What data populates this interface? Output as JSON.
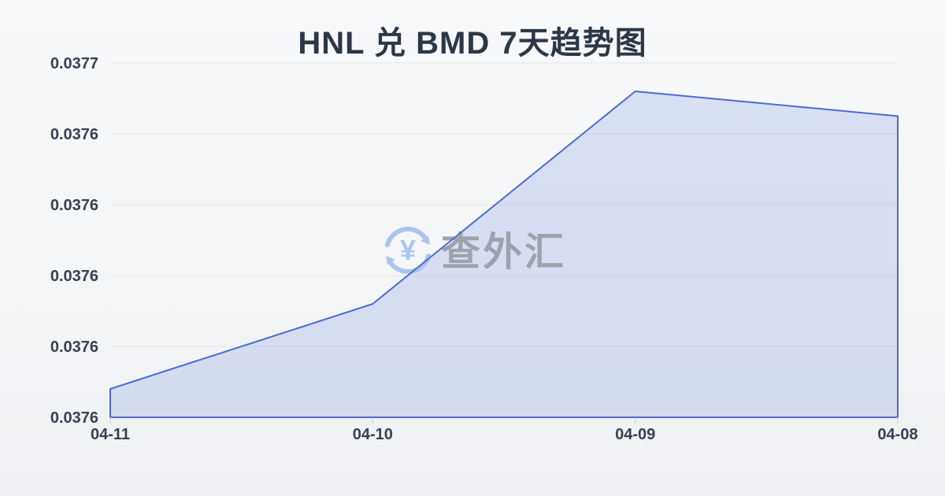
{
  "title": "HNL 兑 BMD 7天趋势图",
  "watermark": {
    "icon": "currency-exchange-icon",
    "icon_symbol": "¥",
    "text": "查外汇"
  },
  "colors": {
    "line": "#4a6cd3",
    "area_fill": "#4a6cd3",
    "gridline": "#e3e6ea",
    "tick": "#c9cdd4",
    "axis_label": "#374151",
    "title": "#2d3748",
    "watermark_text": "#9aa0aa",
    "watermark_icon": "#a9c3ee"
  },
  "chart_data": {
    "type": "area",
    "title": "HNL 兑 BMD 7天趋势图",
    "x": [
      "04-11",
      "04-10",
      "04-09",
      "04-08"
    ],
    "values": [
      0.037608,
      0.037632,
      0.037692,
      0.037685
    ],
    "ylim": [
      0.0376,
      0.0377
    ],
    "y_tick_labels": [
      "0.0377",
      "0.0376",
      "0.0376",
      "0.0376",
      "0.0376",
      "0.0376"
    ],
    "xlabel": "",
    "ylabel": "",
    "grid": true,
    "legend": false
  }
}
